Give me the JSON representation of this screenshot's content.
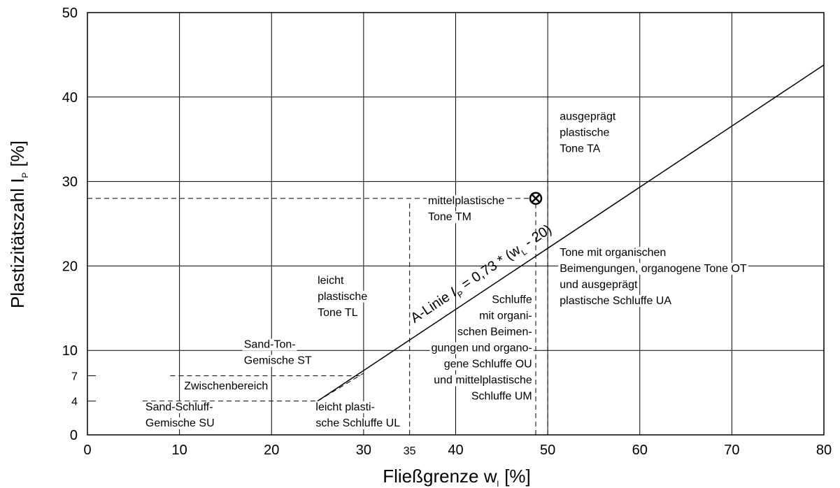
{
  "chart_data": {
    "type": "line",
    "title": "",
    "xlabel": "Fließgrenze w",
    "xlabel_sub": "l",
    "xlabel_unit": "[%]",
    "ylabel": "Plastizitätszahl I",
    "ylabel_sub": "P",
    "ylabel_unit": "[%]",
    "xlim": [
      0,
      80
    ],
    "ylim": [
      0,
      50
    ],
    "grid": true,
    "x_ticks": [
      0,
      10,
      20,
      30,
      40,
      50,
      60,
      70,
      80
    ],
    "x_ticks_minor": [
      35
    ],
    "y_ticks": [
      0,
      10,
      20,
      30,
      40,
      50
    ],
    "y_ticks_minor": [
      4,
      7
    ],
    "series": [
      {
        "name": "A-Linie",
        "equation": "I",
        "equation_sub1": "P",
        "equation_mid": " = 0,73 * (w",
        "equation_sub2": "L",
        "equation_end": " - 20)",
        "x": [
          25,
          80
        ],
        "y": [
          4,
          43.8
        ]
      }
    ],
    "boundaries": [
      {
        "x": [
          25,
          30
        ],
        "y": [
          4,
          7.3
        ]
      },
      {
        "x": [
          6,
          25
        ],
        "y": [
          4,
          4
        ]
      },
      {
        "x": [
          9,
          30
        ],
        "y": [
          7,
          7
        ]
      },
      {
        "x": [
          35,
          35
        ],
        "y": [
          0,
          27.5
        ]
      },
      {
        "x": [
          50,
          50
        ],
        "y": [
          0,
          36.5
        ]
      },
      {
        "x": [
          0,
          49
        ],
        "y": [
          28,
          28
        ]
      },
      {
        "x": [
          48.7,
          48.7
        ],
        "y": [
          0,
          28
        ]
      }
    ],
    "marker": {
      "x": 48.7,
      "y": 28,
      "symbol": "circle-x"
    },
    "regions": [
      {
        "lines": [
          "ausgeprägt",
          "plastische",
          "Tone TA"
        ],
        "x": 51.3,
        "y": 37.3
      },
      {
        "lines": [
          "mittelplastische",
          "Tone TM"
        ],
        "x": 37,
        "y": 27.3
      },
      {
        "lines": [
          "Tone mit organischen",
          "Beimengungen, organogene Tone OT",
          "und ausgeprägt",
          "plastische Schluffe UA"
        ],
        "x": 51.3,
        "y": 21.2
      },
      {
        "lines": [
          "leicht",
          "plastische",
          "Tone TL"
        ],
        "x": 25,
        "y": 17.9
      },
      {
        "lines": [
          "Schluffe",
          "mit organi-",
          "schen Beimen-",
          "gungen und organo-",
          "gene Schluffe OU",
          "und mittelplastische",
          "Schluffe UM"
        ],
        "x": 48.3,
        "y": 15.6,
        "anchor": "end"
      },
      {
        "lines": [
          "Sand-Ton-",
          "Gemische ST"
        ],
        "x": 17,
        "y": 10.3
      },
      {
        "lines": [
          "Zwischenbereich"
        ],
        "x": 10.5,
        "y": 5.4
      },
      {
        "lines": [
          "Sand-Schluff-",
          "Gemische SU"
        ],
        "x": 6.3,
        "y": 2.9
      },
      {
        "lines": [
          "leicht plasti-",
          "sche Schluffe UL"
        ],
        "x": 24.8,
        "y": 2.9
      }
    ]
  }
}
